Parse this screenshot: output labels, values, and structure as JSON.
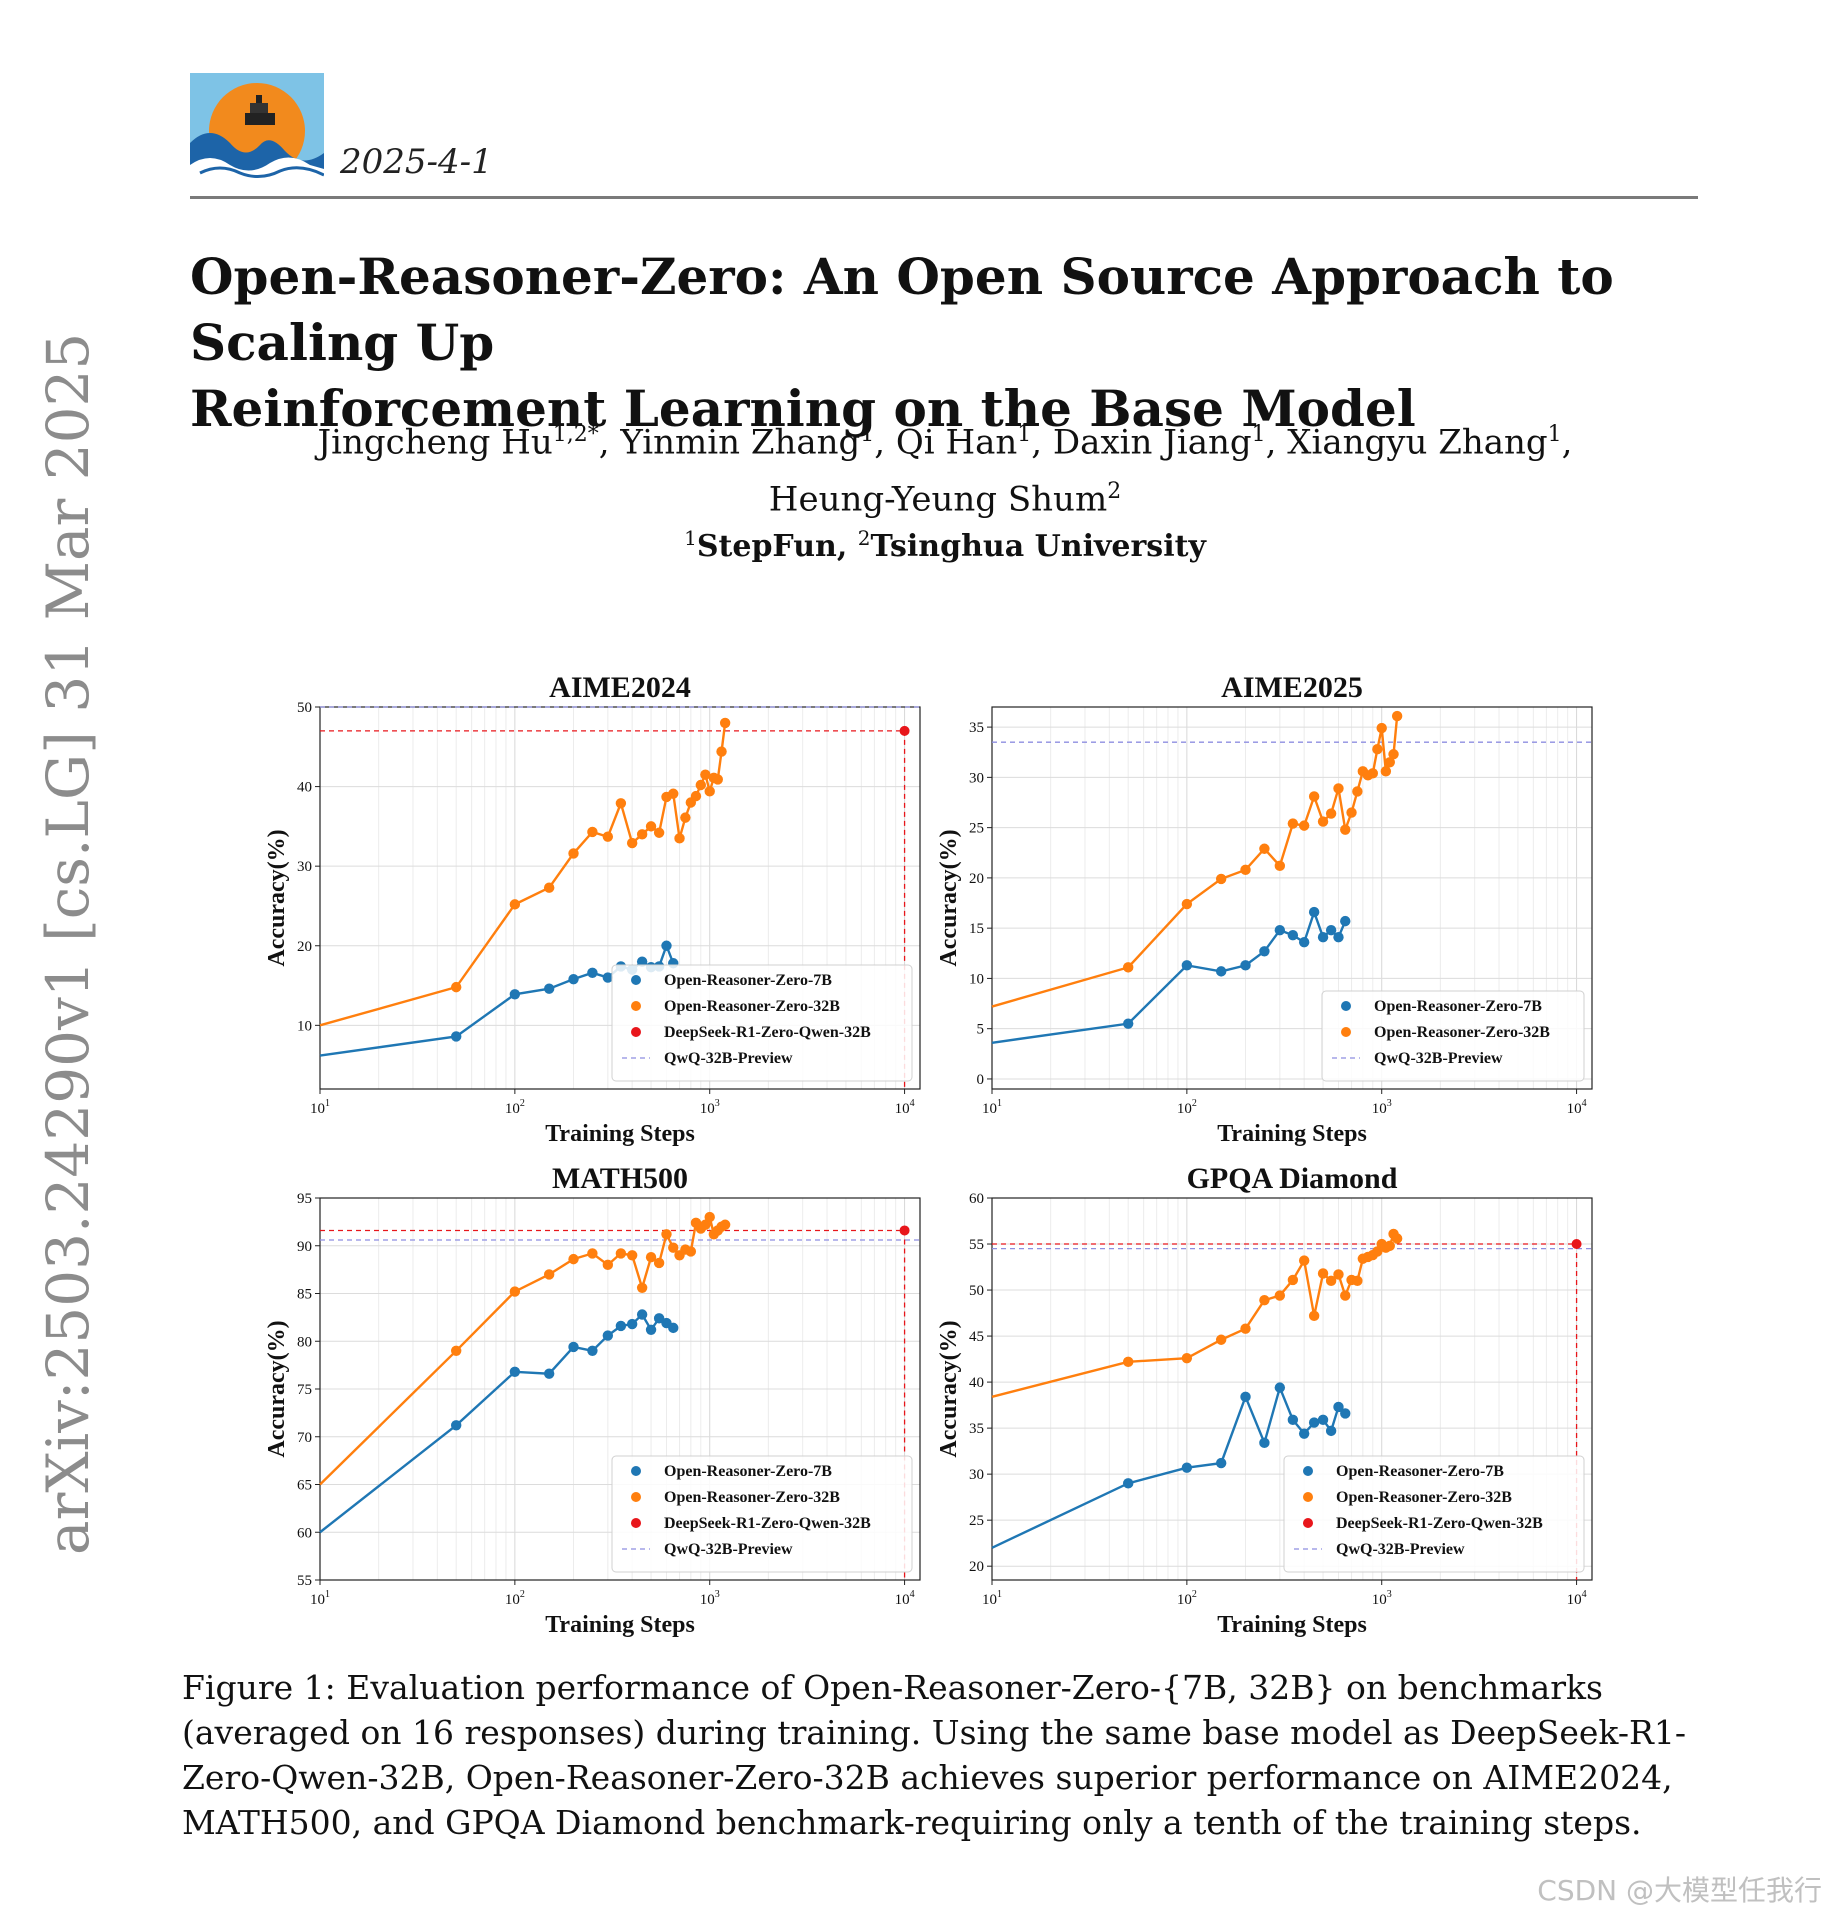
{
  "header": {
    "date": "2025-4-1"
  },
  "paper": {
    "title_line1": "Open-Reasoner-Zero: An Open Source Approach to Scaling Up",
    "title_line2": "Reinforcement Learning on the Base Model",
    "authors": [
      {
        "name": "Jingcheng Hu",
        "sup": "1,2*"
      },
      {
        "name": "Yinmin Zhang",
        "sup": "1"
      },
      {
        "name": "Qi Han",
        "sup": "1"
      },
      {
        "name": "Daxin Jiang",
        "sup": "1"
      },
      {
        "name": "Xiangyu Zhang",
        "sup": "1"
      },
      {
        "name": "Heung-Yeung Shum",
        "sup": "2"
      }
    ],
    "affiliations": [
      {
        "sup": "1",
        "name": "StepFun"
      },
      {
        "sup": "2",
        "name": "Tsinghua University"
      }
    ],
    "arxiv_id": "arXiv:2503.24290v1  [cs.LG]  31 Mar 2025",
    "caption": "Figure 1: Evaluation performance of Open-Reasoner-Zero-{7B, 32B} on benchmarks (averaged on 16 responses) during training. Using the same base model as DeepSeek-R1-Zero-Qwen-32B, Open-Reasoner-Zero-32B achieves superior performance on AIME2024, MATH500, and GPQA Diamond benchmark-requiring only a tenth of the training steps.",
    "watermark": "CSDN @大模型任我行"
  },
  "colors": {
    "blue": "#1f77b4",
    "orange": "#ff7f0e",
    "red": "#e8161b",
    "ref_blue": "#8e8ee0"
  },
  "chart_data": [
    {
      "type": "line",
      "title": "AIME2024",
      "xlabel": "Training Steps",
      "ylabel": "Accuracy(%)",
      "xscale": "log",
      "xlim": [
        10,
        12000
      ],
      "ylim": [
        2,
        50
      ],
      "yticks": [
        10,
        20,
        30,
        40,
        50
      ],
      "legend": "lower-right",
      "series": [
        {
          "name": "Open-Reasoner-Zero-7B",
          "color": "#1f77b4",
          "x": [
            10,
            50,
            100,
            150,
            200,
            250,
            300,
            350,
            400,
            450,
            500,
            550,
            600,
            650
          ],
          "y": [
            6.2,
            8.6,
            13.9,
            14.6,
            15.8,
            16.6,
            16.0,
            17.4,
            17.0,
            18.0,
            17.3,
            17.4,
            20.0,
            17.8
          ]
        },
        {
          "name": "Open-Reasoner-Zero-32B",
          "color": "#ff7f0e",
          "x": [
            10,
            50,
            100,
            150,
            200,
            250,
            300,
            350,
            400,
            450,
            500,
            550,
            600,
            650,
            700,
            750,
            800,
            850,
            900,
            950,
            1000,
            1050,
            1100,
            1150,
            1200
          ],
          "y": [
            10.0,
            14.8,
            25.2,
            27.3,
            31.6,
            34.3,
            33.7,
            37.9,
            32.9,
            34.0,
            35.0,
            34.2,
            38.7,
            39.1,
            33.5,
            36.1,
            38.0,
            38.8,
            40.2,
            41.5,
            39.4,
            41.1,
            40.9,
            44.4,
            48.0
          ]
        }
      ],
      "points": [
        {
          "name": "DeepSeek-R1-Zero-Qwen-32B",
          "x": 10000,
          "y": 47.0,
          "color": "#e8161b"
        }
      ],
      "hlines": [
        {
          "name": "QwQ-32B-Preview",
          "y": 50.0,
          "color": "#8e8ee0"
        }
      ]
    },
    {
      "type": "line",
      "title": "AIME2025",
      "xlabel": "Training Steps",
      "ylabel": "Accuracy(%)",
      "xscale": "log",
      "xlim": [
        10,
        12000
      ],
      "ylim": [
        -1,
        37
      ],
      "yticks": [
        0,
        5,
        10,
        15,
        20,
        25,
        30,
        35
      ],
      "legend": "lower-right",
      "series": [
        {
          "name": "Open-Reasoner-Zero-7B",
          "color": "#1f77b4",
          "x": [
            10,
            50,
            100,
            150,
            200,
            250,
            300,
            350,
            400,
            450,
            500,
            550,
            600,
            650
          ],
          "y": [
            3.6,
            5.5,
            11.3,
            10.7,
            11.3,
            12.7,
            14.8,
            14.3,
            13.6,
            16.6,
            14.1,
            14.8,
            14.1,
            15.7
          ]
        },
        {
          "name": "Open-Reasoner-Zero-32B",
          "color": "#ff7f0e",
          "x": [
            10,
            50,
            100,
            150,
            200,
            250,
            300,
            350,
            400,
            450,
            500,
            550,
            600,
            650,
            700,
            750,
            800,
            850,
            900,
            950,
            1000,
            1050,
            1100,
            1150,
            1200
          ],
          "y": [
            7.2,
            11.1,
            17.4,
            19.9,
            20.8,
            22.9,
            21.2,
            25.4,
            25.2,
            28.1,
            25.6,
            26.4,
            28.9,
            24.8,
            26.5,
            28.6,
            30.6,
            30.2,
            30.4,
            32.8,
            34.9,
            30.6,
            31.5,
            32.3,
            36.1
          ]
        }
      ],
      "points": [],
      "hlines": [
        {
          "name": "QwQ-32B-Preview",
          "y": 33.5,
          "color": "#8e8ee0"
        }
      ]
    },
    {
      "type": "line",
      "title": "MATH500",
      "xlabel": "Training Steps",
      "ylabel": "Accuracy(%)",
      "xscale": "log",
      "xlim": [
        10,
        12000
      ],
      "ylim": [
        55,
        95
      ],
      "yticks": [
        55,
        60,
        65,
        70,
        75,
        80,
        85,
        90,
        95
      ],
      "legend": "lower-right",
      "series": [
        {
          "name": "Open-Reasoner-Zero-7B",
          "color": "#1f77b4",
          "x": [
            10,
            50,
            100,
            150,
            200,
            250,
            300,
            350,
            400,
            450,
            500,
            550,
            600,
            650
          ],
          "y": [
            60.0,
            71.2,
            76.8,
            76.6,
            79.4,
            79.0,
            80.6,
            81.6,
            81.8,
            82.8,
            81.2,
            82.4,
            81.9,
            81.4
          ]
        },
        {
          "name": "Open-Reasoner-Zero-32B",
          "color": "#ff7f0e",
          "x": [
            10,
            50,
            100,
            150,
            200,
            250,
            300,
            350,
            400,
            450,
            500,
            550,
            600,
            650,
            700,
            750,
            800,
            850,
            900,
            950,
            1000,
            1050,
            1100,
            1150,
            1200
          ],
          "y": [
            65.0,
            79.0,
            85.2,
            87.0,
            88.6,
            89.2,
            88.0,
            89.2,
            89.0,
            85.6,
            88.8,
            88.2,
            91.2,
            89.8,
            89.0,
            89.6,
            89.4,
            92.4,
            91.8,
            92.2,
            93.0,
            91.2,
            91.6,
            92.0,
            92.2
          ]
        }
      ],
      "points": [
        {
          "name": "DeepSeek-R1-Zero-Qwen-32B",
          "x": 10000,
          "y": 91.6,
          "color": "#e8161b"
        }
      ],
      "hlines": [
        {
          "name": "QwQ-32B-Preview",
          "y": 90.6,
          "color": "#8e8ee0"
        }
      ]
    },
    {
      "type": "line",
      "title": "GPQA Diamond",
      "xlabel": "Training Steps",
      "ylabel": "Accuracy(%)",
      "xscale": "log",
      "xlim": [
        10,
        12000
      ],
      "ylim": [
        18.5,
        60
      ],
      "yticks": [
        20,
        25,
        30,
        35,
        40,
        45,
        50,
        55,
        60
      ],
      "legend": "lower-right",
      "series": [
        {
          "name": "Open-Reasoner-Zero-7B",
          "color": "#1f77b4",
          "x": [
            10,
            50,
            100,
            150,
            200,
            250,
            300,
            350,
            400,
            450,
            500,
            550,
            600,
            650
          ],
          "y": [
            22.0,
            29.0,
            30.7,
            31.2,
            38.4,
            33.4,
            39.4,
            35.9,
            34.4,
            35.6,
            35.9,
            34.7,
            37.3,
            36.6
          ]
        },
        {
          "name": "Open-Reasoner-Zero-32B",
          "color": "#ff7f0e",
          "x": [
            10,
            50,
            100,
            150,
            200,
            250,
            300,
            350,
            400,
            450,
            500,
            550,
            600,
            650,
            700,
            750,
            800,
            850,
            900,
            950,
            1000,
            1050,
            1100,
            1150,
            1200
          ],
          "y": [
            38.4,
            42.2,
            42.6,
            44.6,
            45.8,
            48.9,
            49.4,
            51.1,
            53.2,
            47.2,
            51.8,
            51.0,
            51.7,
            49.4,
            51.1,
            51.0,
            53.4,
            53.6,
            53.8,
            54.2,
            55.0,
            54.6,
            54.8,
            56.1,
            55.6
          ]
        }
      ],
      "points": [
        {
          "name": "DeepSeek-R1-Zero-Qwen-32B",
          "x": 10000,
          "y": 55.0,
          "color": "#e8161b"
        }
      ],
      "hlines": [
        {
          "name": "QwQ-32B-Preview",
          "y": 54.5,
          "color": "#8e8ee0"
        }
      ]
    }
  ]
}
